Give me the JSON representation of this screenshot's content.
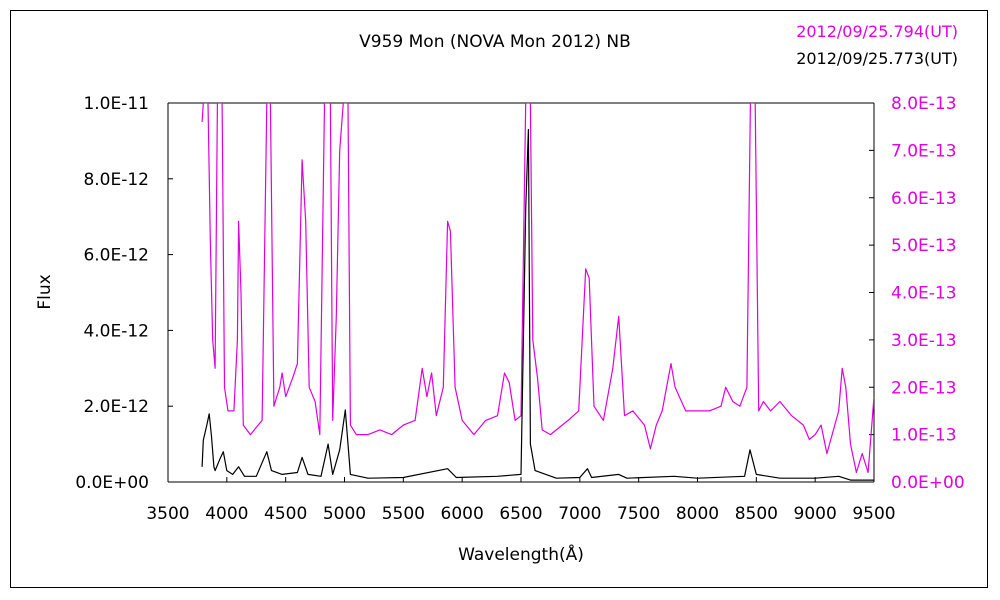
{
  "chart_data": {
    "type": "line",
    "title": "V959 Mon (NOVA Mon 2012)   NB",
    "xlabel": "Wavelength(Å)",
    "ylabel": "Flux",
    "xlim": [
      3500,
      9500
    ],
    "ylim_left": [
      0,
      1e-11
    ],
    "ylim_right": [
      0,
      8e-13
    ],
    "x_ticks": [
      "3500",
      "4000",
      "4500",
      "5000",
      "5500",
      "6000",
      "6500",
      "7000",
      "7500",
      "8000",
      "8500",
      "9000",
      "9500"
    ],
    "y_left_ticks": [
      "0.0E+00",
      "2.0E-12",
      "4.0E-12",
      "6.0E-12",
      "8.0E-12",
      "1.0E-11"
    ],
    "y_right_ticks": [
      "0.0E+00",
      "1.0E-13",
      "2.0E-13",
      "3.0E-13",
      "4.0E-13",
      "5.0E-13",
      "6.0E-13",
      "7.0E-13",
      "8.0E-13"
    ],
    "legend_position": "top-right",
    "series": [
      {
        "name": "2012/09/25.794(UT)",
        "color": "#e000e0",
        "axis": "right",
        "points": [
          [
            3790,
            7.6e-13
          ],
          [
            3800,
            8e-13
          ],
          [
            3840,
            8e-13
          ],
          [
            3860,
            5e-13
          ],
          [
            3880,
            3e-13
          ],
          [
            3900,
            2.4e-13
          ],
          [
            3920,
            8e-13
          ],
          [
            3960,
            8e-13
          ],
          [
            3980,
            2e-13
          ],
          [
            4010,
            1.5e-13
          ],
          [
            4060,
            1.5e-13
          ],
          [
            4090,
            3e-13
          ],
          [
            4100,
            5.5e-13
          ],
          [
            4120,
            4e-13
          ],
          [
            4140,
            1.2e-13
          ],
          [
            4200,
            1e-13
          ],
          [
            4300,
            1.3e-13
          ],
          [
            4340,
            8e-13
          ],
          [
            4370,
            8e-13
          ],
          [
            4400,
            1.6e-13
          ],
          [
            4450,
            2e-13
          ],
          [
            4470,
            2.3e-13
          ],
          [
            4500,
            1.8e-13
          ],
          [
            4560,
            2.2e-13
          ],
          [
            4600,
            2.5e-13
          ],
          [
            4640,
            6.8e-13
          ],
          [
            4670,
            5.5e-13
          ],
          [
            4700,
            2e-13
          ],
          [
            4750,
            1.7e-13
          ],
          [
            4790,
            1e-13
          ],
          [
            4830,
            8e-13
          ],
          [
            4880,
            8e-13
          ],
          [
            4900,
            1.3e-13
          ],
          [
            4930,
            3.5e-13
          ],
          [
            4959,
            7e-13
          ],
          [
            4990,
            8e-13
          ],
          [
            5030,
            8e-13
          ],
          [
            5050,
            1.2e-13
          ],
          [
            5100,
            1e-13
          ],
          [
            5200,
            1e-13
          ],
          [
            5300,
            1.1e-13
          ],
          [
            5400,
            1e-13
          ],
          [
            5500,
            1.2e-13
          ],
          [
            5600,
            1.3e-13
          ],
          [
            5660,
            2.4e-13
          ],
          [
            5700,
            1.8e-13
          ],
          [
            5740,
            2.3e-13
          ],
          [
            5780,
            1.4e-13
          ],
          [
            5840,
            2e-13
          ],
          [
            5876,
            5.5e-13
          ],
          [
            5900,
            5.3e-13
          ],
          [
            5940,
            2e-13
          ],
          [
            6000,
            1.3e-13
          ],
          [
            6100,
            1e-13
          ],
          [
            6200,
            1.3e-13
          ],
          [
            6300,
            1.4e-13
          ],
          [
            6360,
            2.3e-13
          ],
          [
            6400,
            2.1e-13
          ],
          [
            6450,
            1.3e-13
          ],
          [
            6500,
            1.4e-13
          ],
          [
            6540,
            8e-13
          ],
          [
            6580,
            8e-13
          ],
          [
            6600,
            3e-13
          ],
          [
            6640,
            2.2e-13
          ],
          [
            6680,
            1.1e-13
          ],
          [
            6750,
            1e-13
          ],
          [
            6800,
            1.1e-13
          ],
          [
            6900,
            1.3e-13
          ],
          [
            6990,
            1.5e-13
          ],
          [
            7050,
            4.5e-13
          ],
          [
            7080,
            4.3e-13
          ],
          [
            7120,
            1.6e-13
          ],
          [
            7200,
            1.3e-13
          ],
          [
            7280,
            2.4e-13
          ],
          [
            7330,
            3.5e-13
          ],
          [
            7380,
            1.4e-13
          ],
          [
            7450,
            1.5e-13
          ],
          [
            7550,
            1.2e-13
          ],
          [
            7600,
            7e-14
          ],
          [
            7650,
            1.2e-13
          ],
          [
            7700,
            1.5e-13
          ],
          [
            7775,
            2.5e-13
          ],
          [
            7810,
            2e-13
          ],
          [
            7900,
            1.5e-13
          ],
          [
            8000,
            1.5e-13
          ],
          [
            8100,
            1.5e-13
          ],
          [
            8200,
            1.6e-13
          ],
          [
            8240,
            2e-13
          ],
          [
            8300,
            1.7e-13
          ],
          [
            8360,
            1.6e-13
          ],
          [
            8420,
            2e-13
          ],
          [
            8450,
            8e-13
          ],
          [
            8490,
            8e-13
          ],
          [
            8520,
            1.5e-13
          ],
          [
            8560,
            1.7e-13
          ],
          [
            8620,
            1.5e-13
          ],
          [
            8700,
            1.7e-13
          ],
          [
            8800,
            1.4e-13
          ],
          [
            8900,
            1.2e-13
          ],
          [
            8950,
            9e-14
          ],
          [
            9000,
            1e-13
          ],
          [
            9050,
            1.2e-13
          ],
          [
            9100,
            6e-14
          ],
          [
            9200,
            1.5e-13
          ],
          [
            9230,
            2.4e-13
          ],
          [
            9260,
            2e-13
          ],
          [
            9300,
            8e-14
          ],
          [
            9350,
            2e-14
          ],
          [
            9400,
            6e-14
          ],
          [
            9450,
            2e-14
          ],
          [
            9500,
            1.8e-13
          ]
        ]
      },
      {
        "name": "2012/09/25.773(UT)",
        "color": "#000000",
        "axis": "left",
        "points": [
          [
            3790,
            4e-13
          ],
          [
            3800,
            1.1e-12
          ],
          [
            3830,
            1.5e-12
          ],
          [
            3850,
            1.8e-12
          ],
          [
            3870,
            1.2e-12
          ],
          [
            3890,
            4e-13
          ],
          [
            3900,
            3e-13
          ],
          [
            3940,
            6e-13
          ],
          [
            3970,
            8e-13
          ],
          [
            4000,
            3e-13
          ],
          [
            4050,
            2e-13
          ],
          [
            4100,
            4e-13
          ],
          [
            4150,
            1.5e-13
          ],
          [
            4250,
            1.5e-13
          ],
          [
            4340,
            8e-13
          ],
          [
            4380,
            3e-13
          ],
          [
            4470,
            2e-13
          ],
          [
            4600,
            2.5e-13
          ],
          [
            4640,
            6.5e-13
          ],
          [
            4690,
            2e-13
          ],
          [
            4800,
            1.5e-13
          ],
          [
            4861,
            1e-12
          ],
          [
            4900,
            2e-13
          ],
          [
            4959,
            8.5e-13
          ],
          [
            5007,
            1.9e-12
          ],
          [
            5050,
            2e-13
          ],
          [
            5200,
            1e-13
          ],
          [
            5500,
            1.2e-13
          ],
          [
            5876,
            3.5e-13
          ],
          [
            5950,
            1.2e-13
          ],
          [
            6300,
            1.5e-13
          ],
          [
            6500,
            2e-13
          ],
          [
            6540,
            7.2e-12
          ],
          [
            6563,
            9.3e-12
          ],
          [
            6580,
            1e-12
          ],
          [
            6620,
            3e-13
          ],
          [
            6800,
            1e-13
          ],
          [
            7000,
            1.2e-13
          ],
          [
            7065,
            3.5e-13
          ],
          [
            7100,
            1.2e-13
          ],
          [
            7330,
            2e-13
          ],
          [
            7400,
            1e-13
          ],
          [
            7800,
            1.5e-13
          ],
          [
            8000,
            1e-13
          ],
          [
            8400,
            1.5e-13
          ],
          [
            8446,
            8.5e-13
          ],
          [
            8500,
            2e-13
          ],
          [
            8700,
            1e-13
          ],
          [
            9000,
            1e-13
          ],
          [
            9200,
            1.5e-13
          ],
          [
            9300,
            5e-14
          ],
          [
            9500,
            5e-14
          ]
        ]
      }
    ]
  }
}
